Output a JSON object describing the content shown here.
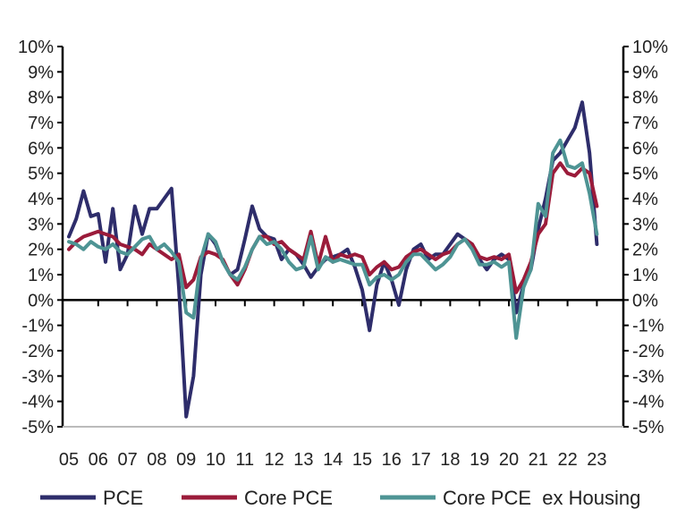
{
  "chart_data": {
    "type": "line",
    "title": "",
    "xlabel": "",
    "ylabel": "",
    "ylim": [
      -5,
      10
    ],
    "yticks": [
      "10%",
      "9%",
      "8%",
      "7%",
      "6%",
      "5%",
      "4%",
      "3%",
      "2%",
      "1%",
      "0%",
      "-1%",
      "-2%",
      "-3%",
      "-4%",
      "-5%"
    ],
    "ytick_values": [
      10,
      9,
      8,
      7,
      6,
      5,
      4,
      3,
      2,
      1,
      0,
      -1,
      -2,
      -3,
      -4,
      -5
    ],
    "xticks": [
      "05",
      "06",
      "07",
      "08",
      "09",
      "10",
      "11",
      "12",
      "13",
      "14",
      "15",
      "16",
      "17",
      "18",
      "19",
      "20",
      "21",
      "22",
      "23"
    ],
    "x_start": 2005,
    "x_step": 0.25,
    "grid": false,
    "legend_position": "bottom",
    "series": [
      {
        "name": "PCE",
        "color": "#2e2d6b",
        "values": [
          2.5,
          3.2,
          4.3,
          3.3,
          3.4,
          1.5,
          3.6,
          1.2,
          1.8,
          3.7,
          2.6,
          3.6,
          3.6,
          4.0,
          4.4,
          0.5,
          -4.6,
          -3.0,
          1.0,
          2.6,
          2.2,
          1.5,
          1.0,
          1.2,
          2.4,
          3.7,
          2.8,
          2.5,
          2.4,
          1.6,
          2.0,
          1.8,
          1.4,
          0.9,
          1.3,
          1.6,
          1.7,
          1.8,
          2.0,
          1.3,
          0.4,
          -1.2,
          0.6,
          1.5,
          0.8,
          -0.2,
          1.2,
          2.0,
          2.2,
          1.6,
          1.8,
          1.8,
          2.2,
          2.6,
          2.4,
          2.2,
          1.6,
          1.2,
          1.6,
          1.8,
          1.6,
          -0.5,
          0.6,
          1.2,
          2.8,
          4.0,
          5.5,
          5.8,
          6.3,
          6.8,
          7.8,
          5.8,
          2.2
        ]
      },
      {
        "name": "Core PCE",
        "color": "#9b1b3a",
        "values": [
          2.0,
          2.3,
          2.5,
          2.6,
          2.7,
          2.6,
          2.5,
          2.2,
          2.1,
          2.0,
          1.8,
          2.2,
          2.0,
          1.8,
          1.6,
          1.8,
          0.5,
          0.8,
          1.7,
          1.9,
          1.8,
          1.6,
          1.0,
          0.6,
          1.2,
          2.0,
          2.5,
          2.5,
          2.2,
          2.3,
          2.0,
          1.8,
          1.6,
          2.7,
          1.4,
          2.5,
          1.5,
          1.8,
          1.7,
          1.8,
          1.7,
          1.0,
          1.3,
          1.5,
          1.2,
          1.3,
          1.7,
          1.9,
          2.0,
          1.8,
          1.6,
          1.8,
          1.9,
          2.2,
          2.4,
          2.2,
          1.7,
          1.6,
          1.7,
          1.6,
          1.8,
          0.3,
          0.8,
          1.5,
          2.6,
          3.0,
          5.0,
          5.4,
          5.0,
          4.9,
          5.2,
          5.0,
          3.7
        ]
      },
      {
        "name": "Core PCE  ex Housing",
        "color": "#4e9494",
        "values": [
          2.3,
          2.2,
          2.0,
          2.3,
          2.1,
          2.0,
          2.2,
          1.9,
          1.8,
          2.1,
          2.4,
          2.5,
          2.0,
          2.2,
          1.9,
          1.5,
          -0.5,
          -0.7,
          1.6,
          2.6,
          2.3,
          1.5,
          1.0,
          0.8,
          1.3,
          2.0,
          2.5,
          2.2,
          2.3,
          2.0,
          1.5,
          1.2,
          1.3,
          2.5,
          1.2,
          1.7,
          1.5,
          1.6,
          1.5,
          1.4,
          1.4,
          0.6,
          0.9,
          1.0,
          0.8,
          1.0,
          1.5,
          1.8,
          1.8,
          1.5,
          1.2,
          1.4,
          1.7,
          2.2,
          2.4,
          2.0,
          1.4,
          1.4,
          1.5,
          1.3,
          1.5,
          -1.5,
          0.5,
          1.2,
          3.8,
          3.3,
          5.8,
          6.3,
          5.3,
          5.2,
          5.4,
          4.2,
          2.6
        ]
      }
    ]
  }
}
